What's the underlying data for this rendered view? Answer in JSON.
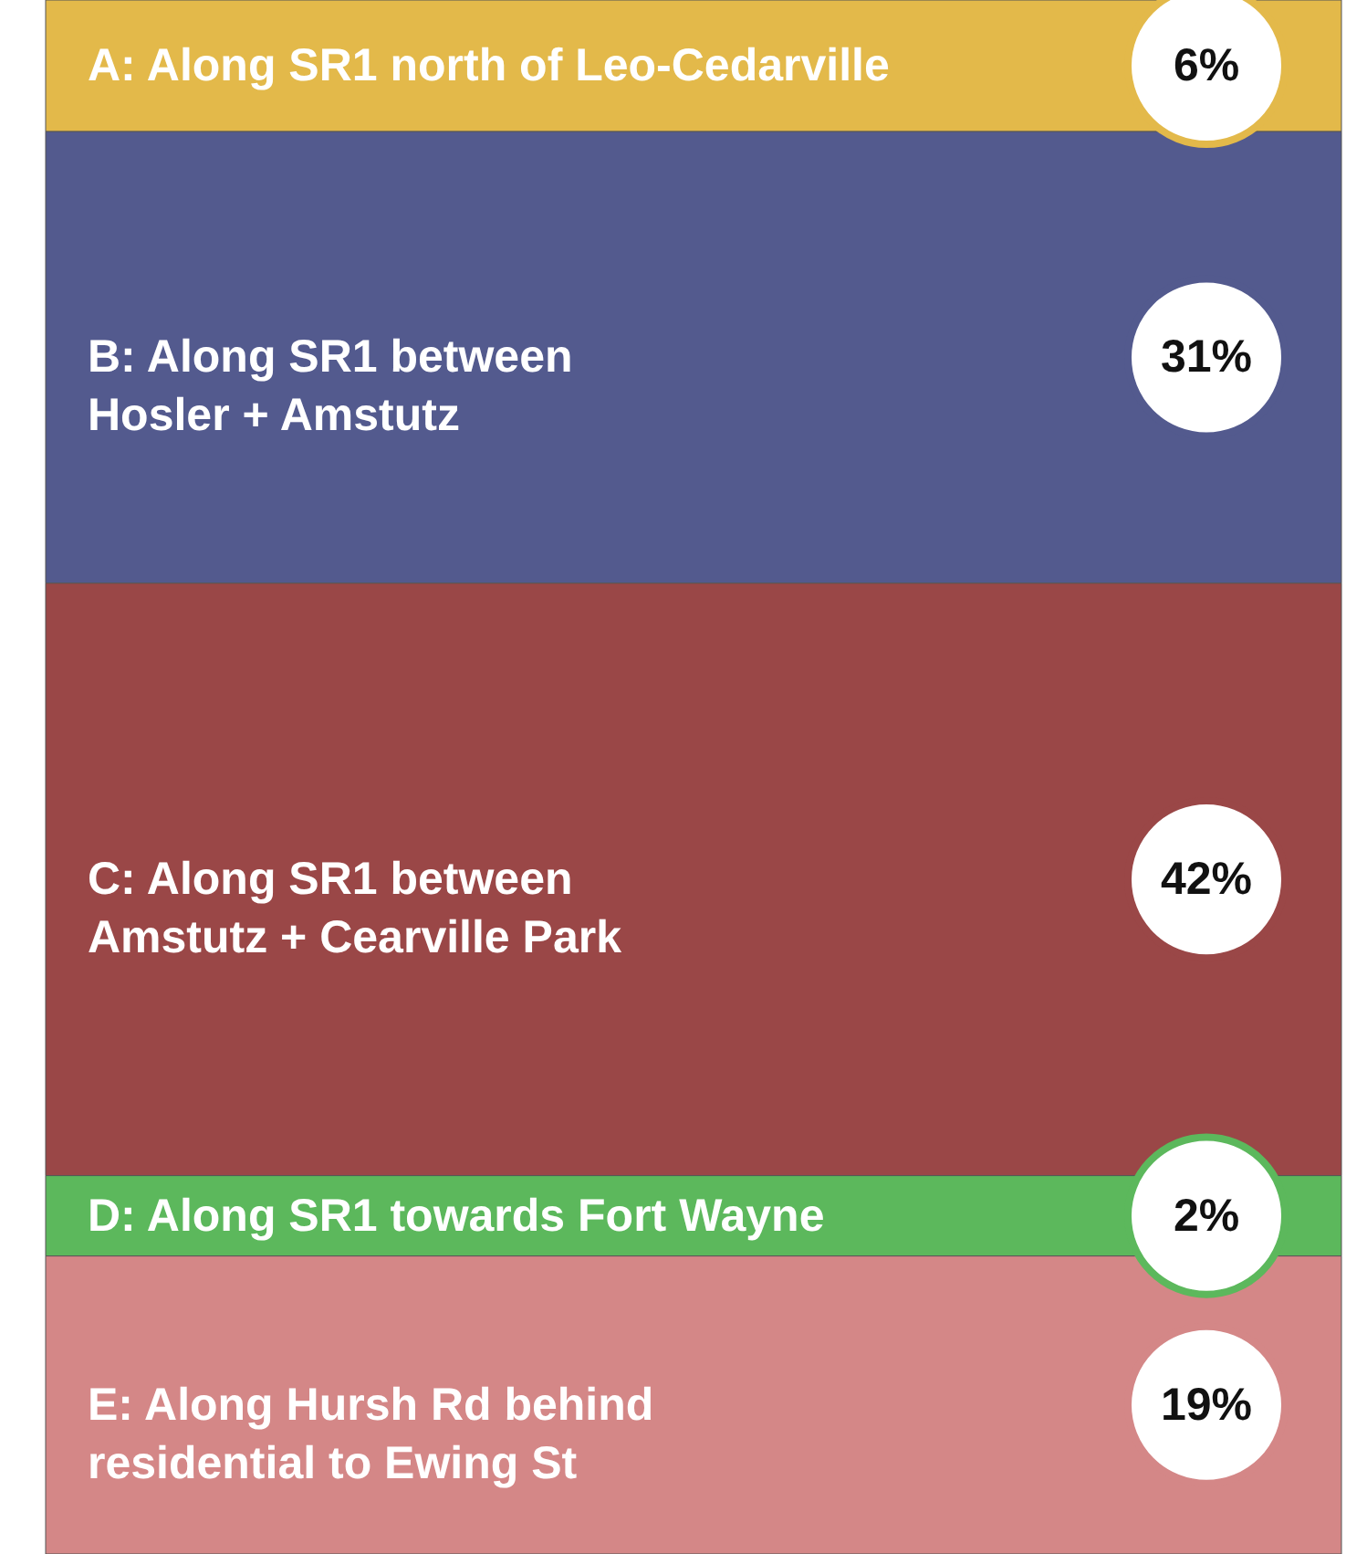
{
  "chart_data": {
    "type": "other",
    "categories": [
      "A: Along SR1 north of Leo-Cedarville",
      "B: Along SR1 between\n     Hosler + Amstutz",
      "C: Along SR1 between\n     Amstutz + Cearville Park",
      "D: Along SR1 towards Fort Wayne",
      "E: Along Hursh Rd behind\n    residential to Ewing St"
    ],
    "values": [
      6,
      31,
      42,
      2,
      19
    ],
    "value_labels": [
      "6%",
      "31%",
      "42%",
      "2%",
      "19%"
    ],
    "colors": [
      "#e3b94a",
      "#535a8e",
      "#9a4747",
      "#5cb85c",
      "#d48787"
    ]
  }
}
